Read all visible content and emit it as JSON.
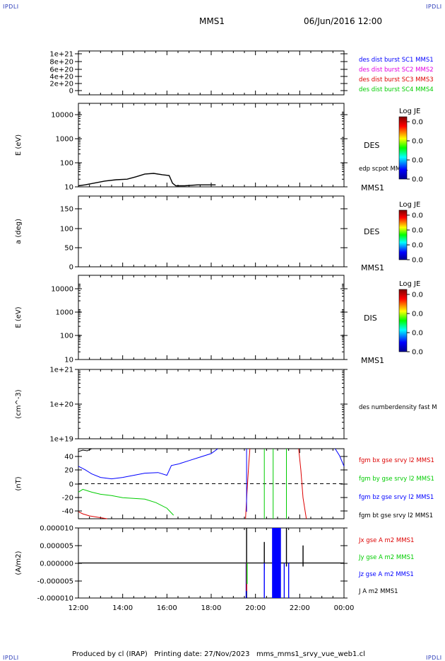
{
  "header": {
    "corner_label": "IPDLI",
    "title": "MMS1",
    "date": "06/Jun/2016 12:00"
  },
  "footer": {
    "produced": "Produced by cl (IRAP)   Printing date: 27/Nov/2023   mms_mms1_srvy_vue_web1.cl"
  },
  "time_axis": {
    "ticks": [
      "12:00",
      "14:00",
      "16:00",
      "18:00",
      "20:00",
      "22:00",
      "00:00"
    ],
    "range_hours": [
      12,
      24
    ]
  },
  "colorbar": {
    "label": "Log JE",
    "values": [
      "0.0",
      "0.0",
      "0.0",
      "0.0"
    ]
  },
  "colors": {
    "blue": "#0000ff",
    "magenta": "#e000e0",
    "red": "#dd0000",
    "green": "#00cc00",
    "black": "#000000"
  },
  "chart_data": [
    {
      "type": "line",
      "panel": "dist",
      "yticks": [
        "1e+21",
        "8e+20",
        "6e+20",
        "4e+20",
        "2e+20",
        "0"
      ],
      "ylim": [
        0,
        1e+21
      ],
      "reference_line": 0,
      "legend": [
        {
          "text": "des dist burst SC1 MMS1",
          "color": "#0000ff"
        },
        {
          "text": "des dist burst SC2 MMS2",
          "color": "#e000e0"
        },
        {
          "text": "des dist burst SC3 MMS3",
          "color": "#dd0000"
        },
        {
          "text": "des dist burst SC4 MMS4",
          "color": "#00cc00"
        }
      ]
    },
    {
      "type": "line",
      "panel": "des-energy",
      "ylabel": "E (eV)",
      "scale": "log",
      "yticks": [
        "10000",
        "1000",
        "100",
        "10"
      ],
      "ylim": [
        10,
        20000
      ],
      "species": "DES",
      "legend": [
        {
          "text": "edp scpot MMS1",
          "color": "#000000"
        }
      ],
      "spacecraft": "MMS1",
      "series": [
        {
          "name": "edp scpot MMS1",
          "x": [
            12.0,
            12.3,
            12.7,
            13.2,
            13.7,
            14.2,
            14.6,
            15.0,
            15.4,
            15.8,
            16.1,
            16.25,
            16.4,
            16.8,
            17.4,
            18.2
          ],
          "y": [
            11,
            12,
            14,
            17,
            19,
            20,
            25,
            32,
            34,
            30,
            28,
            14,
            11,
            11,
            12,
            12
          ]
        }
      ]
    },
    {
      "type": "heatmap",
      "panel": "des-pitch",
      "ylabel": "a (deg)",
      "yticks": [
        "150",
        "100",
        "50",
        "0"
      ],
      "ylim": [
        0,
        180
      ],
      "species": "DES",
      "spacecraft": "MMS1"
    },
    {
      "type": "heatmap",
      "panel": "dis-energy",
      "ylabel": "E (eV)",
      "scale": "log",
      "yticks": [
        "10000",
        "1000",
        "100",
        "10"
      ],
      "ylim": [
        10,
        20000
      ],
      "species": "DIS",
      "spacecraft": "MMS1"
    },
    {
      "type": "line",
      "panel": "density",
      "ylabel": "(cm^-3)",
      "scale": "log",
      "yticks": [
        "1e+21",
        "1e+20",
        "1e+19"
      ],
      "ylim": [
        1e+19,
        1e+21
      ],
      "legend": [
        {
          "text": "des numberdensity fast M",
          "color": "#000000"
        }
      ]
    },
    {
      "type": "line",
      "panel": "fgm",
      "ylabel": "(nT)",
      "yticks": [
        "40",
        "20",
        "0",
        "-20",
        "-40"
      ],
      "ylim": [
        -50,
        50
      ],
      "reference_line": 0,
      "legend": [
        {
          "text": "fgm bx gse srvy l2 MMS1",
          "color": "#dd0000"
        },
        {
          "text": "fgm by gse srvy l2 MMS1",
          "color": "#00cc00"
        },
        {
          "text": "fgm bz gse srvy l2 MMS1",
          "color": "#0000ff"
        },
        {
          "text": "fgm bt gse srvy l2 MMS1",
          "color": "#000000"
        }
      ],
      "series": [
        {
          "name": "fgm bx gse srvy l2 MMS1",
          "color": "#dd0000",
          "segments": [
            {
              "x": [
                12.0,
                12.2,
                12.5,
                12.9,
                13.3
              ],
              "y": [
                -40,
                -43,
                -46,
                -48,
                -50
              ]
            },
            {
              "x": [
                19.55,
                19.62,
                19.7,
                19.75
              ],
              "y": [
                -50,
                -10,
                30,
                50
              ]
            },
            {
              "x": [
                21.95,
                22.05,
                22.15,
                22.3
              ],
              "y": [
                50,
                20,
                -20,
                -50
              ]
            }
          ]
        },
        {
          "name": "fgm by gse srvy l2 MMS1",
          "color": "#00cc00",
          "segments": [
            {
              "x": [
                12.0,
                12.2,
                12.6,
                13.0,
                13.5,
                14.0,
                14.5,
                15.0,
                15.5,
                16.0,
                16.3
              ],
              "y": [
                -12,
                -8,
                -12,
                -15,
                -17,
                -20,
                -21,
                -22,
                -27,
                -35,
                -45
              ]
            },
            {
              "x": [
                20.4,
                20.4
              ],
              "y": [
                50,
                -50
              ]
            },
            {
              "x": [
                20.8,
                20.8
              ],
              "y": [
                50,
                -50
              ]
            },
            {
              "x": [
                21.4,
                21.4
              ],
              "y": [
                50,
                -50
              ]
            }
          ]
        },
        {
          "name": "fgm bz gse srvy l2 MMS1",
          "color": "#0000ff",
          "segments": [
            {
              "x": [
                12.0,
                12.3,
                12.6,
                13.0,
                13.5,
                14.0,
                14.5,
                15.0,
                15.6,
                16.0,
                16.2,
                16.5,
                17.0,
                17.5,
                18.0,
                18.3
              ],
              "y": [
                25,
                20,
                14,
                9,
                7,
                9,
                12,
                15,
                16,
                12,
                26,
                28,
                33,
                38,
                43,
                50
              ]
            },
            {
              "x": [
                19.6,
                19.6
              ],
              "y": [
                50,
                -40
              ]
            },
            {
              "x": [
                23.6,
                23.8,
                24.0
              ],
              "y": [
                50,
                40,
                25
              ]
            }
          ]
        },
        {
          "name": "fgm bt gse srvy l2 MMS1",
          "color": "#000000",
          "segments": [
            {
              "x": [
                12.0,
                12.2,
                12.4,
                12.6
              ],
              "y": [
                46,
                48,
                47,
                50
              ]
            }
          ]
        }
      ]
    },
    {
      "type": "line",
      "panel": "current",
      "ylabel": "(A/m2)",
      "xlabel": "",
      "yticks": [
        "0.000010",
        "0.000005",
        "0.000000",
        "-0.000005",
        "-0.000010"
      ],
      "ylim": [
        -1e-05,
        1e-05
      ],
      "legend": [
        {
          "text": "Jx gse A m2 MMS1",
          "color": "#dd0000"
        },
        {
          "text": "Jy gse A m2 MMS1",
          "color": "#00cc00"
        },
        {
          "text": "Jz gse A m2 MMS1",
          "color": "#0000ff"
        },
        {
          "text": "J A m2 MMS1",
          "color": "#000000"
        }
      ],
      "series": [
        {
          "name": "J A m2 MMS1",
          "color": "#000000",
          "baseline": 0.0,
          "spikes": [
            {
              "x": 19.6,
              "ymin": -1e-05,
              "ymax": 1e-05
            },
            {
              "x": 20.4,
              "ymin": -2e-06,
              "ymax": 6e-06
            },
            {
              "x": 21.4,
              "ymin": -1e-06,
              "ymax": 1e-05
            },
            {
              "x": 22.15,
              "ymin": -1e-06,
              "ymax": 5e-06
            }
          ]
        },
        {
          "name": "Jz gse A m2 MMS1",
          "color": "#0000ff",
          "bands": [
            {
              "x0": 20.75,
              "x1": 21.15,
              "ymin": -1e-05,
              "ymax": 1e-05
            }
          ],
          "spikes": [
            {
              "x": 19.58,
              "ymin": -1e-05,
              "ymax": 0.0
            },
            {
              "x": 20.4,
              "ymin": -1e-05,
              "ymax": 0.0
            },
            {
              "x": 21.3,
              "ymin": -1e-05,
              "ymax": 0.0
            },
            {
              "x": 21.5,
              "ymin": -1e-05,
              "ymax": 0.0
            }
          ]
        },
        {
          "name": "Jx gse A m2 MMS1",
          "color": "#dd0000",
          "spikes": [
            {
              "x": 19.6,
              "ymin": -8e-06,
              "ymax": 0.0
            }
          ]
        },
        {
          "name": "Jy gse A m2 MMS1",
          "color": "#00cc00",
          "spikes": [
            {
              "x": 19.62,
              "ymin": -6e-06,
              "ymax": 0.0
            }
          ]
        }
      ]
    }
  ]
}
